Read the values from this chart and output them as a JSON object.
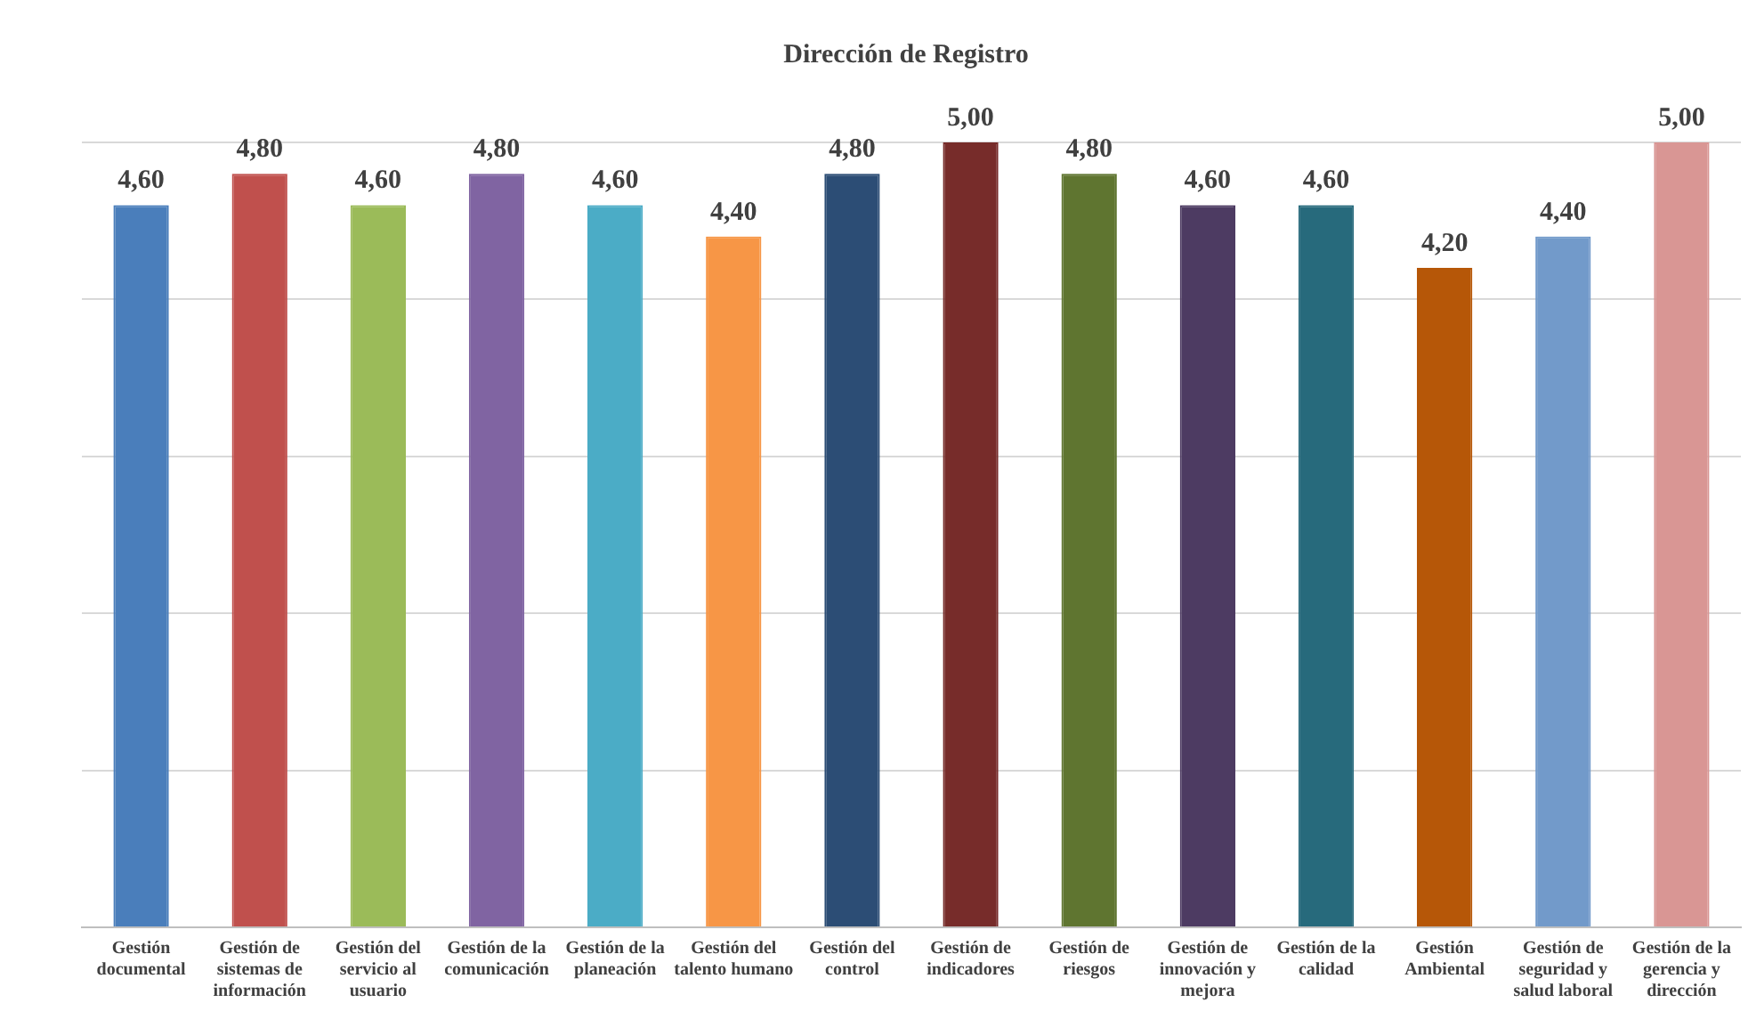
{
  "chart_data": {
    "type": "bar",
    "title": "Dirección de Registro",
    "categories": [
      "Gestión documental",
      "Gestión de sistemas de información",
      "Gestión del servicio al usuario",
      "Gestión de la comunicación",
      "Gestión de la planeación",
      "Gestión del talento humano",
      "Gestión del control",
      "Gestión de indicadores",
      "Gestión de riesgos",
      "Gestión de innovación y mejora",
      "Gestión de la calidad",
      "Gestión Ambiental",
      "Gestión de seguridad y salud laboral",
      "Gestión de la gerencia y dirección"
    ],
    "values": [
      4.6,
      4.8,
      4.6,
      4.8,
      4.6,
      4.4,
      4.8,
      5.0,
      4.8,
      4.6,
      4.6,
      4.2,
      4.4,
      5.0
    ],
    "value_labels": [
      "4,60",
      "4,80",
      "4,60",
      "4,80",
      "4,60",
      "4,40",
      "4,80",
      "5,00",
      "4,80",
      "4,60",
      "4,60",
      "4,20",
      "4,40",
      "5,00"
    ],
    "colors": [
      "#4a7ebb",
      "#c0504d",
      "#9bbb59",
      "#8064a2",
      "#4bacc6",
      "#f79646",
      "#2c4d75",
      "#772c2a",
      "#5f7530",
      "#4d3b62",
      "#276a7c",
      "#b65708",
      "#729aca",
      "#d99694"
    ],
    "ylim": [
      0,
      5
    ],
    "yticks": [
      {
        "value": 0,
        "label": null
      },
      {
        "value": 1,
        "label": null
      },
      {
        "value": 2,
        "label": null
      },
      {
        "value": 3,
        "label": null
      },
      {
        "value": 4,
        "label": null
      },
      {
        "value": 5,
        "label": null
      }
    ],
    "grid": "y",
    "legend": false
  }
}
